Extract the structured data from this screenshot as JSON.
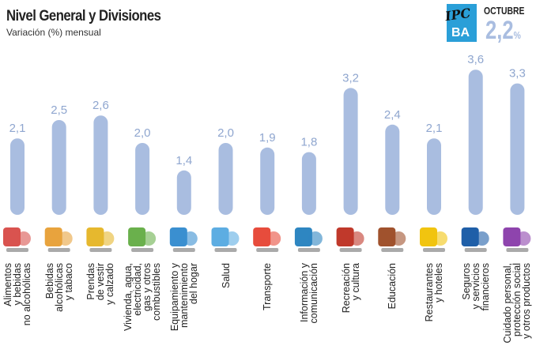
{
  "header": {
    "title": "Nivel General y Divisiones",
    "subtitle": "Variación (%) mensual",
    "logo_text": "IPC BA",
    "month": "OCTUBRE",
    "total_value": "2,2",
    "total_unit": "%"
  },
  "colors": {
    "bar": "#a9bde0",
    "value_label": "#8fa6cf",
    "logo": "#2a9fd8"
  },
  "chart_data": {
    "type": "bar",
    "title": "Nivel General y Divisiones",
    "ylabel": "Variación (%) mensual",
    "categories": [
      "Alimentos\ny bebidas\nno alcohólicas",
      "Bebidas\nalcohólicas\ny tabaco",
      "Prendas\nde vestir\ny calzado",
      "Vivienda, agua,\nelectricidad,\ngas y otros\ncombustibles",
      "Equipamiento y\nmantenimiento\ndel hogar",
      "Salud",
      "Transporte",
      "Información y\ncomunicación",
      "Recreación\ny cultura",
      "Educación",
      "Restaurantes\ny hoteles",
      "Seguros\ny servicios\nfinancieros",
      "Cuidado personal,\nprotección social\ny otros productos"
    ],
    "values": [
      2.1,
      2.5,
      2.6,
      2.0,
      1.4,
      2.0,
      1.9,
      1.8,
      3.2,
      2.4,
      2.1,
      3.6,
      3.3
    ],
    "value_labels": [
      "2,1",
      "2,5",
      "2,6",
      "2,0",
      "1,4",
      "2,0",
      "1,9",
      "1,8",
      "3,2",
      "2,4",
      "2,1",
      "3,6",
      "3,3"
    ],
    "icons": [
      "food-icon",
      "wine-bottle-icon",
      "jacket-icon",
      "house-icon",
      "washing-machine-icon",
      "doctor-icon",
      "car-plane-icon",
      "computer-icon",
      "theater-masks-icon",
      "school-icon",
      "cutlery-icon",
      "bank-icon",
      "cosmetics-icon"
    ],
    "icon_colors": [
      "#d9534f",
      "#e8a33d",
      "#e6b82e",
      "#6ab04c",
      "#3a8fd0",
      "#5dade2",
      "#e74c3c",
      "#2e86c1",
      "#c0392b",
      "#a0522d",
      "#f1c40f",
      "#1f5fa8",
      "#8e44ad"
    ]
  }
}
